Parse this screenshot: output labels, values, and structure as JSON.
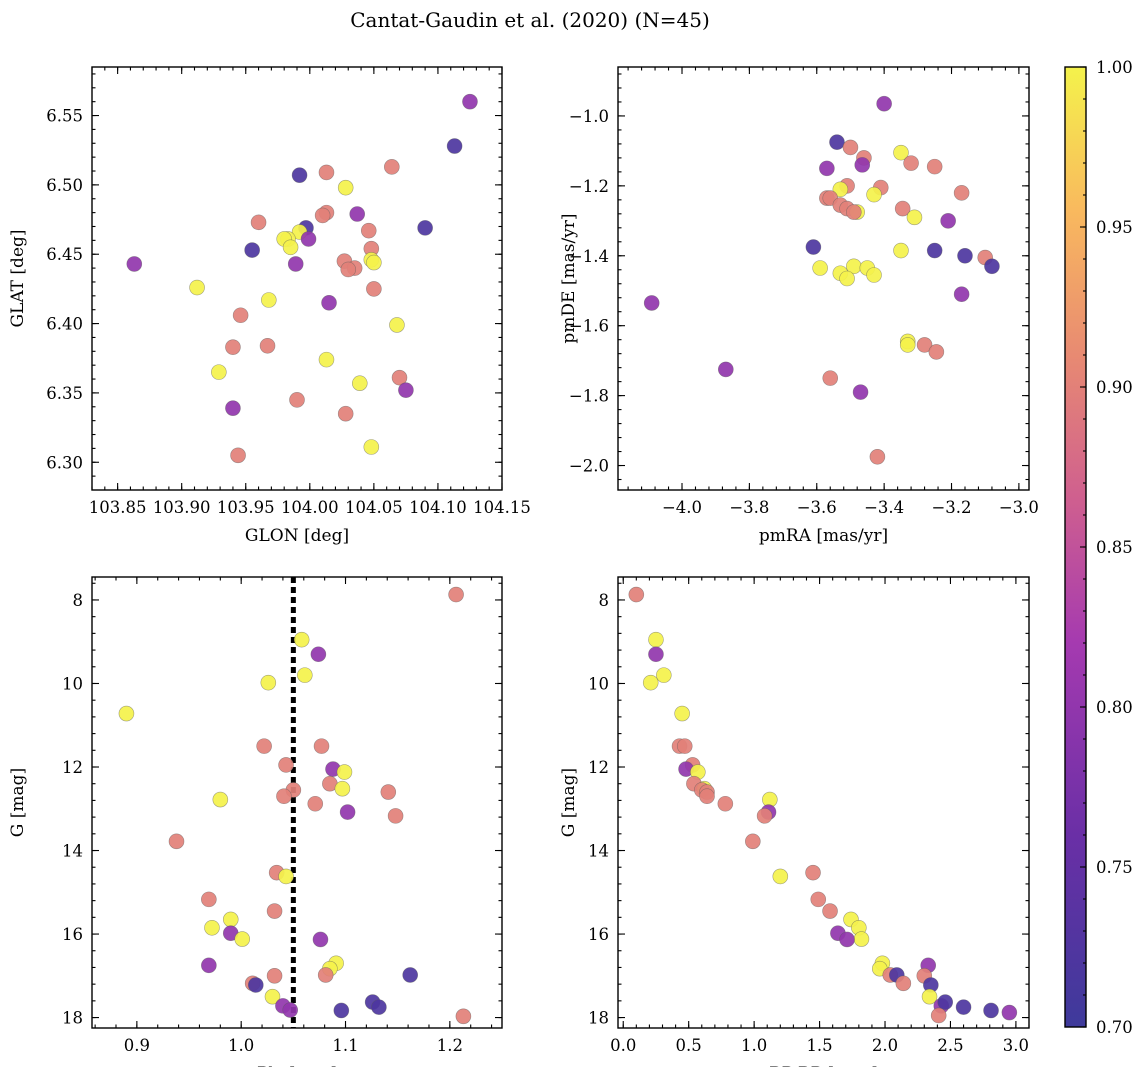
{
  "title": "Cantat-Gaudin et al. (2020) (N=45)",
  "colorbar": {
    "min": 0.7,
    "max": 1.0,
    "ticks": [
      "0.70",
      "0.75",
      "0.80",
      "0.85",
      "0.90",
      "0.95",
      "1.00"
    ]
  },
  "reference_parallax": 1.05,
  "chart_data": [
    {
      "id": "glon-glat",
      "type": "scatter",
      "xlabel": "GLON [deg]",
      "ylabel": "GLAT [deg]",
      "xlim": [
        103.83,
        104.15
      ],
      "ylim": [
        6.28,
        6.585
      ],
      "xticks": [
        103.85,
        103.9,
        103.95,
        104.0,
        104.05,
        104.1,
        104.15
      ],
      "xticklabels": [
        "103.85",
        "103.90",
        "103.95",
        "104.00",
        "104.05",
        "104.10",
        "104.15"
      ],
      "yticks": [
        6.3,
        6.35,
        6.4,
        6.45,
        6.5,
        6.55
      ],
      "yticklabels": [
        "6.30",
        "6.35",
        "6.40",
        "6.45",
        "6.50",
        "6.55"
      ],
      "yreverse": false,
      "points": [
        [
          104.125,
          6.56,
          0.8
        ],
        [
          104.113,
          6.528,
          0.72
        ],
        [
          103.992,
          6.507,
          0.72
        ],
        [
          104.013,
          6.509,
          0.9
        ],
        [
          104.064,
          6.513,
          0.9
        ],
        [
          104.028,
          6.498,
          1.0
        ],
        [
          104.013,
          6.48,
          0.9
        ],
        [
          104.01,
          6.478,
          0.9
        ],
        [
          104.037,
          6.479,
          0.8
        ],
        [
          103.96,
          6.473,
          0.9
        ],
        [
          103.997,
          6.469,
          0.72
        ],
        [
          104.09,
          6.469,
          0.72
        ],
        [
          104.046,
          6.467,
          0.9
        ],
        [
          103.992,
          6.466,
          1.0
        ],
        [
          103.983,
          6.461,
          1.0
        ],
        [
          103.999,
          6.461,
          0.8
        ],
        [
          103.98,
          6.461,
          1.0
        ],
        [
          103.955,
          6.453,
          0.72
        ],
        [
          103.985,
          6.455,
          1.0
        ],
        [
          104.048,
          6.454,
          0.9
        ],
        [
          104.027,
          6.445,
          0.9
        ],
        [
          104.035,
          6.44,
          0.9
        ],
        [
          104.03,
          6.439,
          0.9
        ],
        [
          103.989,
          6.443,
          0.8
        ],
        [
          104.048,
          6.446,
          1.0
        ],
        [
          104.05,
          6.444,
          1.0
        ],
        [
          103.863,
          6.443,
          0.8
        ],
        [
          104.05,
          6.425,
          0.9
        ],
        [
          103.912,
          6.426,
          1.0
        ],
        [
          103.968,
          6.417,
          1.0
        ],
        [
          104.015,
          6.415,
          0.8
        ],
        [
          103.946,
          6.406,
          0.9
        ],
        [
          104.068,
          6.399,
          1.0
        ],
        [
          103.94,
          6.383,
          0.9
        ],
        [
          103.967,
          6.384,
          0.9
        ],
        [
          104.013,
          6.374,
          1.0
        ],
        [
          103.929,
          6.365,
          1.0
        ],
        [
          104.07,
          6.361,
          0.9
        ],
        [
          104.039,
          6.357,
          1.0
        ],
        [
          104.075,
          6.352,
          0.8
        ],
        [
          103.99,
          6.345,
          0.9
        ],
        [
          103.94,
          6.339,
          0.8
        ],
        [
          104.028,
          6.335,
          0.9
        ],
        [
          104.048,
          6.311,
          1.0
        ],
        [
          103.944,
          6.305,
          0.9
        ]
      ]
    },
    {
      "id": "pmra-pmde",
      "type": "scatter",
      "xlabel": "pmRA [mas/yr]",
      "ylabel": "pmDE [mas/yr]",
      "xlim": [
        -4.19,
        -2.97
      ],
      "ylim": [
        -2.07,
        -0.86
      ],
      "xticks": [
        -4.0,
        -3.8,
        -3.6,
        -3.4,
        -3.2,
        -3.0
      ],
      "xticklabels": [
        "−4.0",
        "−3.8",
        "−3.6",
        "−3.4",
        "−3.2",
        "−3.0"
      ],
      "yticks": [
        -2.0,
        -1.8,
        -1.6,
        -1.4,
        -1.2,
        -1.0
      ],
      "yticklabels": [
        "−2.0",
        "−1.8",
        "−1.6",
        "−1.4",
        "−1.2",
        "−1.0"
      ],
      "yreverse": false,
      "points": [
        [
          -3.4,
          -0.965,
          0.8
        ],
        [
          -3.54,
          -1.075,
          0.72
        ],
        [
          -3.5,
          -1.09,
          0.9
        ],
        [
          -3.35,
          -1.105,
          1.0
        ],
        [
          -3.46,
          -1.12,
          0.9
        ],
        [
          -3.465,
          -1.14,
          0.8
        ],
        [
          -3.57,
          -1.15,
          0.8
        ],
        [
          -3.32,
          -1.135,
          0.9
        ],
        [
          -3.25,
          -1.145,
          0.9
        ],
        [
          -3.51,
          -1.2,
          0.9
        ],
        [
          -3.41,
          -1.205,
          0.9
        ],
        [
          -3.53,
          -1.21,
          1.0
        ],
        [
          -3.17,
          -1.22,
          0.9
        ],
        [
          -3.57,
          -1.235,
          0.9
        ],
        [
          -3.56,
          -1.235,
          0.9
        ],
        [
          -3.43,
          -1.225,
          1.0
        ],
        [
          -3.53,
          -1.255,
          0.9
        ],
        [
          -3.51,
          -1.265,
          0.9
        ],
        [
          -3.345,
          -1.265,
          0.9
        ],
        [
          -3.48,
          -1.275,
          1.0
        ],
        [
          -3.49,
          -1.275,
          0.9
        ],
        [
          -3.31,
          -1.29,
          1.0
        ],
        [
          -3.21,
          -1.3,
          0.8
        ],
        [
          -3.61,
          -1.375,
          0.72
        ],
        [
          -3.25,
          -1.385,
          0.72
        ],
        [
          -3.35,
          -1.385,
          1.0
        ],
        [
          -3.1,
          -1.405,
          0.9
        ],
        [
          -3.16,
          -1.4,
          0.72
        ],
        [
          -3.08,
          -1.43,
          0.72
        ],
        [
          -3.59,
          -1.435,
          1.0
        ],
        [
          -3.49,
          -1.43,
          1.0
        ],
        [
          -3.45,
          -1.435,
          1.0
        ],
        [
          -3.53,
          -1.45,
          1.0
        ],
        [
          -3.43,
          -1.455,
          1.0
        ],
        [
          -3.51,
          -1.465,
          1.0
        ],
        [
          -3.17,
          -1.51,
          0.8
        ],
        [
          -4.09,
          -1.535,
          0.8
        ],
        [
          -3.33,
          -1.645,
          1.0
        ],
        [
          -3.33,
          -1.655,
          1.0
        ],
        [
          -3.28,
          -1.655,
          0.9
        ],
        [
          -3.245,
          -1.675,
          0.9
        ],
        [
          -3.87,
          -1.725,
          0.8
        ],
        [
          -3.56,
          -1.75,
          0.9
        ],
        [
          -3.47,
          -1.79,
          0.8
        ],
        [
          -3.42,
          -1.975,
          0.9
        ]
      ]
    },
    {
      "id": "plx-g",
      "type": "scatter",
      "xlabel": "Plx [mas]",
      "ylabel": "G [mag]",
      "xlim": [
        0.857,
        1.25
      ],
      "ylim": [
        7.45,
        18.25
      ],
      "xticks": [
        0.9,
        1.0,
        1.1,
        1.2
      ],
      "xticklabels": [
        "0.9",
        "1.0",
        "1.1",
        "1.2"
      ],
      "yticks": [
        8,
        10,
        12,
        14,
        16,
        18
      ],
      "yticklabels": [
        "8",
        "10",
        "12",
        "14",
        "16",
        "18"
      ],
      "yreverse": true,
      "points": [
        [
          1.206,
          7.87,
          0.9
        ],
        [
          1.058,
          8.95,
          1.0
        ],
        [
          1.074,
          9.3,
          0.8
        ],
        [
          1.061,
          9.8,
          1.0
        ],
        [
          1.026,
          9.98,
          1.0
        ],
        [
          0.89,
          10.72,
          1.0
        ],
        [
          1.022,
          11.5,
          0.9
        ],
        [
          1.077,
          11.5,
          0.9
        ],
        [
          1.043,
          11.95,
          0.9
        ],
        [
          1.088,
          12.05,
          0.8
        ],
        [
          1.099,
          12.12,
          1.0
        ],
        [
          1.085,
          12.4,
          0.9
        ],
        [
          1.097,
          12.52,
          1.0
        ],
        [
          1.05,
          12.55,
          0.9
        ],
        [
          1.141,
          12.6,
          0.9
        ],
        [
          1.041,
          12.7,
          0.9
        ],
        [
          0.98,
          12.78,
          1.0
        ],
        [
          1.071,
          12.88,
          0.9
        ],
        [
          1.102,
          13.08,
          0.8
        ],
        [
          1.148,
          13.17,
          0.9
        ],
        [
          0.938,
          13.78,
          0.9
        ],
        [
          1.034,
          14.53,
          0.9
        ],
        [
          1.043,
          14.62,
          1.0
        ],
        [
          0.969,
          15.17,
          0.9
        ],
        [
          1.032,
          15.45,
          0.9
        ],
        [
          0.99,
          15.65,
          1.0
        ],
        [
          0.972,
          15.85,
          1.0
        ],
        [
          0.99,
          15.98,
          0.8
        ],
        [
          1.001,
          16.12,
          1.0
        ],
        [
          1.076,
          16.13,
          0.8
        ],
        [
          0.969,
          16.75,
          0.8
        ],
        [
          1.091,
          16.7,
          1.0
        ],
        [
          1.085,
          16.83,
          1.0
        ],
        [
          1.081,
          16.98,
          0.9
        ],
        [
          1.032,
          17.0,
          0.9
        ],
        [
          1.162,
          16.98,
          0.72
        ],
        [
          1.011,
          17.18,
          0.9
        ],
        [
          1.014,
          17.22,
          0.72
        ],
        [
          1.03,
          17.5,
          1.0
        ],
        [
          1.04,
          17.72,
          0.8
        ],
        [
          1.126,
          17.63,
          0.72
        ],
        [
          1.132,
          17.75,
          0.72
        ],
        [
          1.047,
          17.82,
          0.8
        ],
        [
          1.096,
          17.83,
          0.72
        ],
        [
          1.213,
          17.97,
          0.9
        ]
      ]
    },
    {
      "id": "color-g",
      "type": "scatter",
      "xlabel": "BP-RP [mag]",
      "ylabel": "G [mag]",
      "xlim": [
        -0.04,
        3.1
      ],
      "ylim": [
        7.45,
        18.25
      ],
      "xticks": [
        0.0,
        0.5,
        1.0,
        1.5,
        2.0,
        2.5,
        3.0
      ],
      "xticklabels": [
        "0.0",
        "0.5",
        "1.0",
        "1.5",
        "2.0",
        "2.5",
        "3.0"
      ],
      "yticks": [
        8,
        10,
        12,
        14,
        16,
        18
      ],
      "yticklabels": [
        "8",
        "10",
        "12",
        "14",
        "16",
        "18"
      ],
      "yreverse": true,
      "points": [
        [
          0.1,
          7.87,
          0.9
        ],
        [
          0.25,
          8.95,
          1.0
        ],
        [
          0.25,
          9.3,
          0.8
        ],
        [
          0.31,
          9.8,
          1.0
        ],
        [
          0.21,
          9.98,
          1.0
        ],
        [
          0.45,
          10.72,
          1.0
        ],
        [
          0.43,
          11.5,
          0.9
        ],
        [
          0.47,
          11.5,
          0.9
        ],
        [
          0.53,
          11.95,
          0.9
        ],
        [
          0.48,
          12.05,
          0.8
        ],
        [
          0.57,
          12.12,
          1.0
        ],
        [
          0.54,
          12.4,
          0.9
        ],
        [
          0.62,
          12.52,
          1.0
        ],
        [
          0.6,
          12.55,
          0.9
        ],
        [
          0.64,
          12.6,
          0.9
        ],
        [
          0.64,
          12.7,
          0.9
        ],
        [
          1.12,
          12.78,
          1.0
        ],
        [
          0.78,
          12.88,
          0.9
        ],
        [
          1.11,
          13.08,
          0.8
        ],
        [
          1.08,
          13.17,
          0.9
        ],
        [
          0.99,
          13.78,
          0.9
        ],
        [
          1.45,
          14.53,
          0.9
        ],
        [
          1.2,
          14.62,
          1.0
        ],
        [
          1.49,
          15.17,
          0.9
        ],
        [
          1.58,
          15.45,
          0.9
        ],
        [
          1.74,
          15.65,
          1.0
        ],
        [
          1.8,
          15.85,
          1.0
        ],
        [
          1.64,
          15.98,
          0.8
        ],
        [
          1.82,
          16.12,
          1.0
        ],
        [
          1.71,
          16.13,
          0.8
        ],
        [
          2.33,
          16.75,
          0.8
        ],
        [
          1.98,
          16.7,
          1.0
        ],
        [
          1.96,
          16.83,
          1.0
        ],
        [
          2.04,
          16.98,
          0.9
        ],
        [
          2.3,
          17.0,
          0.9
        ],
        [
          2.09,
          16.98,
          0.72
        ],
        [
          2.14,
          17.18,
          0.9
        ],
        [
          2.35,
          17.22,
          0.72
        ],
        [
          2.34,
          17.5,
          1.0
        ],
        [
          2.43,
          17.72,
          0.8
        ],
        [
          2.46,
          17.63,
          0.72
        ],
        [
          2.6,
          17.75,
          0.72
        ],
        [
          2.41,
          17.95,
          0.9
        ],
        [
          2.81,
          17.83,
          0.72
        ],
        [
          2.95,
          17.88,
          0.8
        ]
      ]
    }
  ]
}
